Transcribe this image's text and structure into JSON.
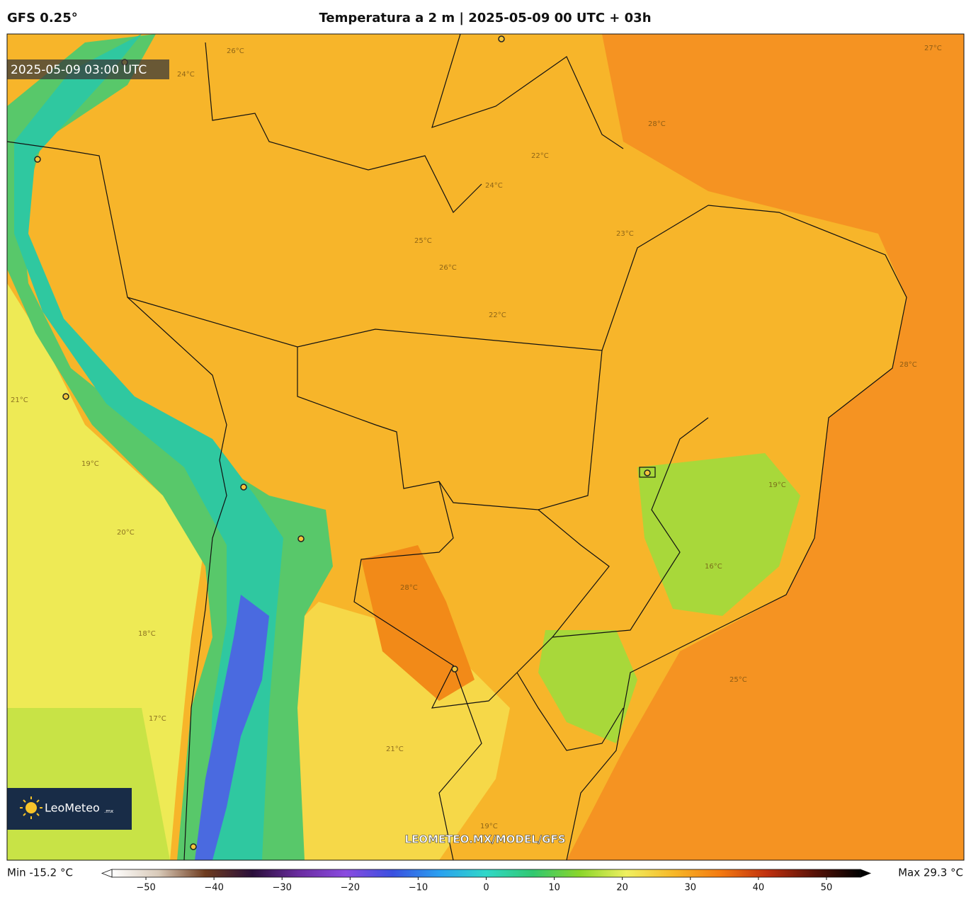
{
  "header": {
    "model": "GFS 0.25°",
    "title": "Temperatura a 2 m | 2025-05-09 00 UTC + 03h"
  },
  "map": {
    "valid_time": "2025-05-09 03:00 UTC",
    "contour_labels": [
      "26°C",
      "24°C",
      "27°C",
      "28°C",
      "22°C",
      "24°C",
      "23°C",
      "25°C",
      "26°C",
      "22°C",
      "21°C",
      "19°C",
      "20°C",
      "28°C",
      "18°C",
      "16°C",
      "19°C",
      "25°C",
      "21°C",
      "19°C",
      "28°C",
      "17°C"
    ],
    "watermark": "LEOMETEO.MX/MODEL/GFS",
    "logo": {
      "name": "LeoMeteo",
      "suffix": ".mx"
    }
  },
  "colorbar": {
    "min_label": "Min -15.2 °C",
    "max_label": "Max 29.3 °C",
    "range": [
      -55,
      55
    ],
    "ticks": [
      {
        "value": -50,
        "label": "−50"
      },
      {
        "value": -40,
        "label": "−40"
      },
      {
        "value": -30,
        "label": "−30"
      },
      {
        "value": -20,
        "label": "−20"
      },
      {
        "value": -10,
        "label": "−10"
      },
      0,
      10,
      20,
      30,
      40,
      50
    ],
    "colors": [
      "#ffffff",
      "#d8c9b8",
      "#6e3b1e",
      "#2a0f3a",
      "#6a2ca0",
      "#8a4be0",
      "#3a50e0",
      "#2aa0f0",
      "#30d8c8",
      "#30c870",
      "#8ad62a",
      "#f0f060",
      "#f7b828",
      "#f47a10",
      "#c0300e",
      "#5a1208",
      "#000000"
    ]
  }
}
